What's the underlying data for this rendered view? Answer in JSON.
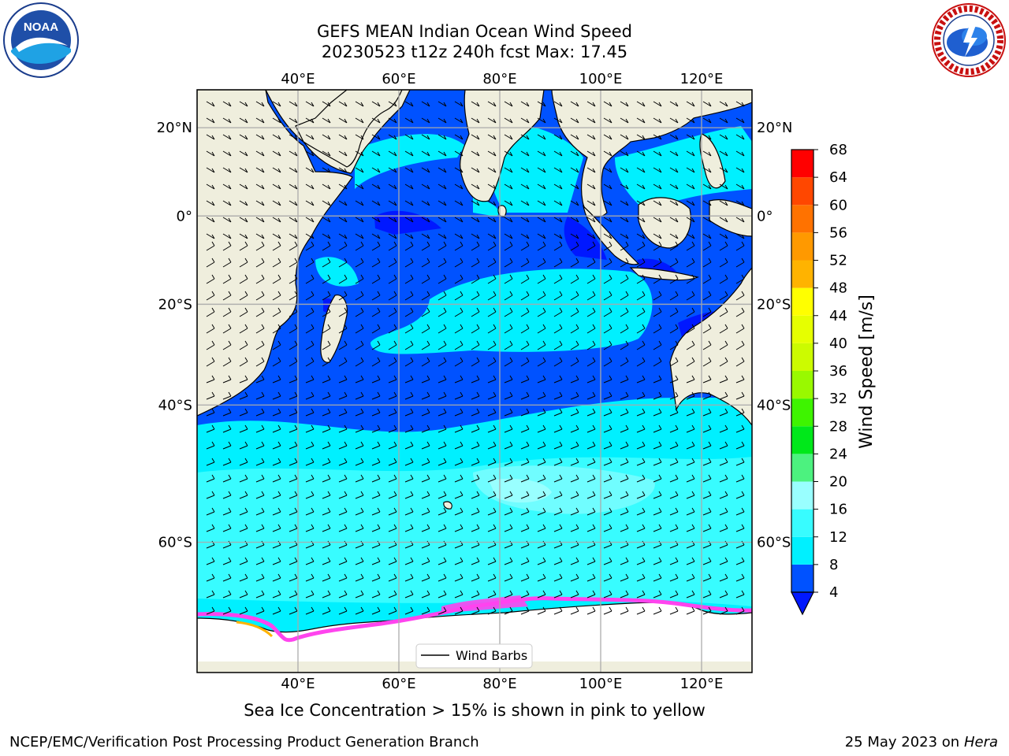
{
  "header": {
    "title": "GEFS MEAN Indian Ocean Wind Speed",
    "subtitle": "20230523 t12z 240h fcst   Max: 17.45"
  },
  "logos": {
    "noaa": {
      "text": "NOAA",
      "icon": "noaa-logo"
    },
    "nws": {
      "icon": "nws-logo",
      "ring_text": "NATIONAL WEATHER SERVICE"
    }
  },
  "map": {
    "lon_range": [
      20,
      130
    ],
    "lat_range": [
      -72,
      28
    ],
    "lon_ticks": [
      {
        "value": 40,
        "label": "40°E"
      },
      {
        "value": 60,
        "label": "60°E"
      },
      {
        "value": 80,
        "label": "80°E"
      },
      {
        "value": 100,
        "label": "100°E"
      },
      {
        "value": 120,
        "label": "120°E"
      }
    ],
    "lat_ticks": [
      {
        "value": 20,
        "label": "20°N"
      },
      {
        "value": 0,
        "label": "0°"
      },
      {
        "value": -20,
        "label": "20°S"
      },
      {
        "value": -40,
        "label": "40°S"
      },
      {
        "value": -60,
        "label": "60°S"
      }
    ],
    "grid": true,
    "legend": {
      "label": "Wind Barbs",
      "position": "bottom-center"
    },
    "colors": {
      "land": "#efeedd",
      "ice_land": "#ffffff",
      "sea_ice": "#ff44ee"
    }
  },
  "colorbar": {
    "label": "Wind Speed [m/s]",
    "levels": [
      4,
      8,
      12,
      16,
      20,
      24,
      28,
      32,
      36,
      40,
      44,
      48,
      52,
      56,
      60,
      64,
      68
    ],
    "colors": [
      "#0052ff",
      "#00f0ff",
      "#38fcff",
      "#99ffff",
      "#4cf27f",
      "#00e81a",
      "#3ef400",
      "#99f900",
      "#ccfb00",
      "#e6ff00",
      "#ffff00",
      "#ffb300",
      "#ff9900",
      "#ff7200",
      "#ff4700",
      "#ff0000"
    ],
    "extend_below_color": "#0018ff"
  },
  "footer": {
    "note": "Sea Ice Concentration > 15% is shown in pink to yellow",
    "credit": "NCEP/EMC/Verification Post Processing Product Generation Branch",
    "date": "25 May 2023 on",
    "host": "Hera"
  }
}
